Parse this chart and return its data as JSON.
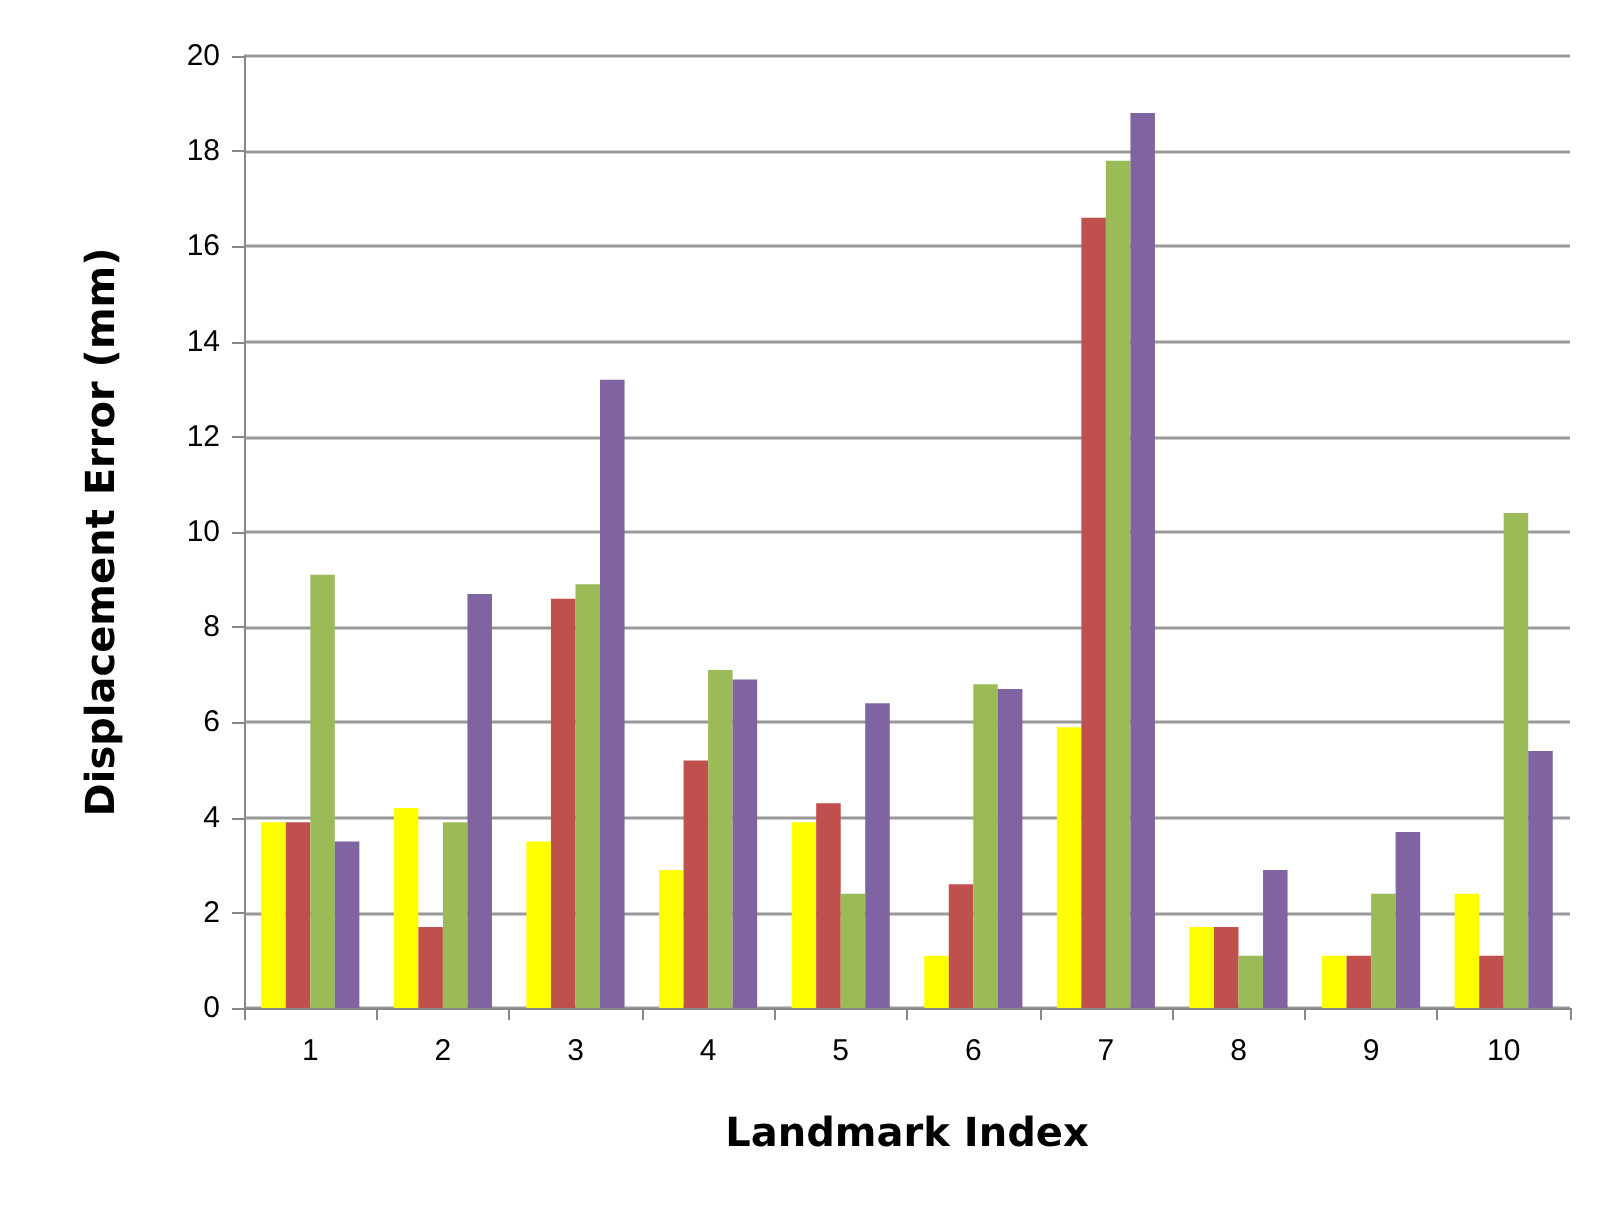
{
  "chart_data": {
    "type": "bar",
    "xlabel": "Landmark Index",
    "ylabel": "Displacement Error (mm)",
    "categories": [
      "1",
      "2",
      "3",
      "4",
      "5",
      "6",
      "7",
      "8",
      "9",
      "10"
    ],
    "series": [
      {
        "color": "#ffff00",
        "values": [
          3.9,
          4.2,
          3.5,
          2.9,
          3.9,
          1.1,
          5.9,
          1.7,
          1.1,
          2.4
        ]
      },
      {
        "color": "#c0504d",
        "values": [
          3.9,
          1.7,
          8.6,
          5.2,
          4.3,
          2.6,
          16.6,
          1.7,
          1.1,
          1.1
        ]
      },
      {
        "color": "#9bbb59",
        "values": [
          9.1,
          3.9,
          8.9,
          7.1,
          2.4,
          6.8,
          17.8,
          1.1,
          2.4,
          10.4
        ]
      },
      {
        "color": "#8064a2",
        "values": [
          3.5,
          8.7,
          13.2,
          6.9,
          6.4,
          6.7,
          18.8,
          2.9,
          3.7,
          5.4
        ]
      }
    ],
    "ylim": [
      0,
      20
    ],
    "yticks": [
      0,
      2,
      4,
      6,
      8,
      10,
      12,
      14,
      16,
      18,
      20
    ],
    "grid": "y"
  }
}
